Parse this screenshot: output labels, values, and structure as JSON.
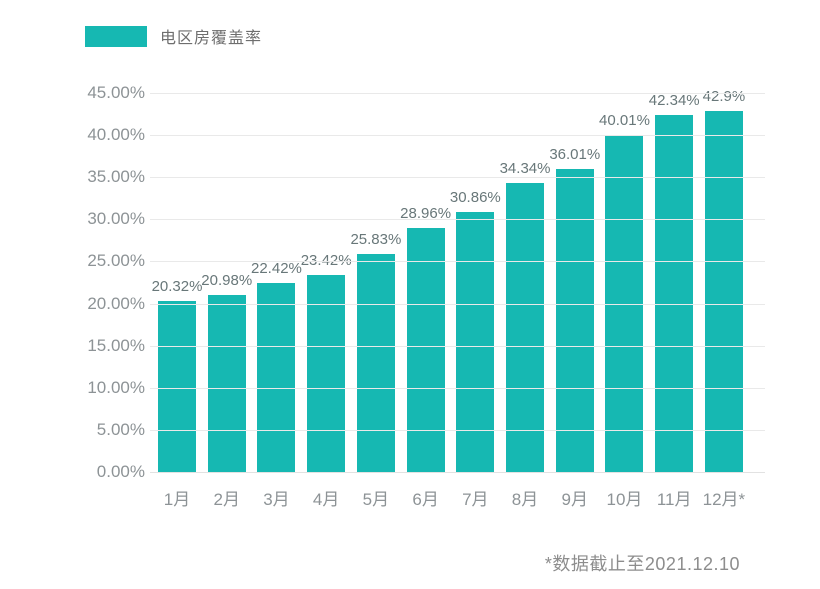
{
  "legend": {
    "label": "电区房覆盖率",
    "swatch_color": "#16B8B2"
  },
  "footnote": "*数据截止至2021.12.10",
  "colors": {
    "bar": "#16B8B2",
    "gridline": "#e9e9e9",
    "axis_text": "#8d9396",
    "value_text": "#687779",
    "background": "#ffffff"
  },
  "chart_data": {
    "type": "bar",
    "title": "",
    "xlabel": "",
    "ylabel": "",
    "categories": [
      "1月",
      "2月",
      "3月",
      "4月",
      "5月",
      "6月",
      "7月",
      "8月",
      "9月",
      "10月",
      "11月",
      "12月*"
    ],
    "values": [
      20.32,
      20.98,
      22.42,
      23.42,
      25.83,
      28.96,
      30.86,
      34.34,
      36.01,
      40.01,
      42.34,
      42.9
    ],
    "value_labels": [
      "20.32%",
      "20.98%",
      "22.42%",
      "23.42%",
      "25.83%",
      "28.96%",
      "30.86%",
      "34.34%",
      "36.01%",
      "40.01%",
      "42.34%",
      "42.9%"
    ],
    "series_name": "电区房覆盖率",
    "y_ticks": [
      "0.00%",
      "5.00%",
      "10.00%",
      "15.00%",
      "20.00%",
      "25.00%",
      "30.00%",
      "35.00%",
      "40.00%",
      "45.00%"
    ],
    "ylim": [
      0,
      45
    ],
    "grid": true,
    "legend_position": "top-left",
    "bar_color": "#16B8B2",
    "annotation": "*数据截止至2021.12.10"
  }
}
